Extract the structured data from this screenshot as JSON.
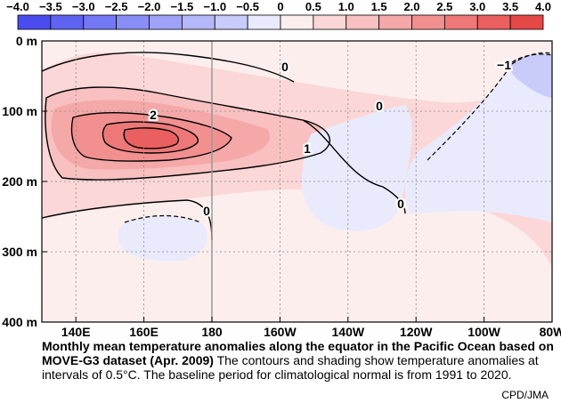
{
  "chart_data": {
    "type": "heatmap",
    "title": "Monthly mean temperature anomalies along the equator in the Pacific Ocean based on MOVE-G3 dataset (Apr. 2009)",
    "description_text": "The contours and shading show temperature anomalies at intervals of 0.5°C. The baseline period for climatological normal is from 1991 to 2020.",
    "credit": "CPD/JMA",
    "x_ticks": [
      "140E",
      "160E",
      "180",
      "160W",
      "140W",
      "120W",
      "100W",
      "80W"
    ],
    "y_ticks": [
      "0 m",
      "100 m",
      "200 m",
      "300 m",
      "400 m"
    ],
    "xlim": [
      130,
      280
    ],
    "ylim": [
      0,
      400
    ],
    "colorbar": {
      "ticks": [
        "−4.0",
        "−3.5",
        "−3.0",
        "−2.5",
        "−2.0",
        "−1.5",
        "−1.0",
        "−0.5",
        "0",
        "0.5",
        "1.0",
        "1.5",
        "2.0",
        "2.5",
        "3.0",
        "3.5",
        "4.0"
      ],
      "colors": [
        "#4a4cf0",
        "#5f63f2",
        "#7478f4",
        "#898df6",
        "#9ea2f7",
        "#b4b7f9",
        "#c9ccfb",
        "#e9ebfd",
        "#fdeeee",
        "#fbd7d7",
        "#f8c0c0",
        "#f5a8a8",
        "#f29090",
        "#ee7878",
        "#ea6060",
        "#e64848"
      ]
    },
    "contour_labels": [
      "2",
      "1",
      "0",
      "0",
      "0",
      "0",
      "−1"
    ],
    "grid": true
  }
}
